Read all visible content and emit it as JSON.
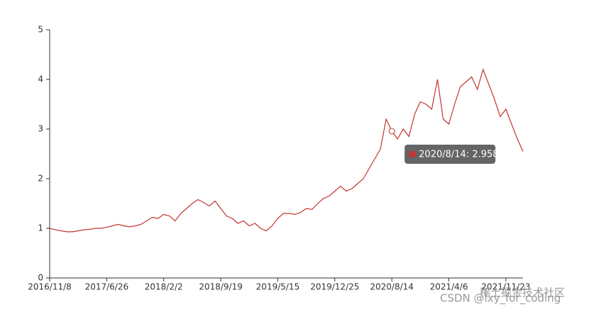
{
  "chart_data": {
    "type": "line",
    "categories": [
      "2016/11/8",
      null,
      null,
      null,
      null,
      null,
      null,
      null,
      null,
      null,
      "2017/6/26",
      null,
      null,
      null,
      null,
      null,
      null,
      null,
      null,
      null,
      "2018/2/2",
      null,
      null,
      null,
      null,
      null,
      null,
      null,
      null,
      null,
      "2018/9/19",
      null,
      null,
      null,
      null,
      null,
      null,
      null,
      null,
      null,
      "2019/5/15",
      null,
      null,
      null,
      null,
      null,
      null,
      null,
      null,
      null,
      "2019/12/25",
      null,
      null,
      null,
      null,
      null,
      null,
      null,
      null,
      null,
      "2020/8/14",
      null,
      null,
      null,
      null,
      null,
      null,
      null,
      null,
      null,
      "2021/4/6",
      null,
      null,
      null,
      null,
      null,
      null,
      null,
      null,
      null,
      "2021/11/23",
      null,
      null,
      null
    ],
    "series": [
      {
        "color": "#c23531",
        "values": [
          1.0,
          0.97,
          0.95,
          0.93,
          0.93,
          0.95,
          0.97,
          0.98,
          1.0,
          1.0,
          1.02,
          1.05,
          1.08,
          1.05,
          1.03,
          1.05,
          1.08,
          1.15,
          1.22,
          1.2,
          1.28,
          1.25,
          1.15,
          1.3,
          1.4,
          1.5,
          1.58,
          1.52,
          1.45,
          1.55,
          1.4,
          1.25,
          1.2,
          1.1,
          1.15,
          1.05,
          1.1,
          1.0,
          0.95,
          1.05,
          1.2,
          1.3,
          1.3,
          1.28,
          1.32,
          1.4,
          1.38,
          1.5,
          1.6,
          1.65,
          1.75,
          1.85,
          1.75,
          1.8,
          1.9,
          2.0,
          2.2,
          2.4,
          2.6,
          3.2,
          2.958,
          2.8,
          3.0,
          2.85,
          3.3,
          3.55,
          3.5,
          3.4,
          4.0,
          3.2,
          3.1,
          3.5,
          3.85,
          3.95,
          4.05,
          3.8,
          4.2,
          3.9,
          3.6,
          3.25,
          3.4,
          3.1,
          2.8,
          2.55
        ]
      }
    ],
    "ylim": [
      0,
      5
    ],
    "yticks": [
      0,
      1,
      2,
      3,
      4,
      5
    ],
    "grid": false,
    "tooltip": "2020/8/14: 2.958"
  },
  "watermark": {
    "csdn": "CSDN @lxy_for_coding",
    "juejin": "稀土掘金技术社区"
  }
}
